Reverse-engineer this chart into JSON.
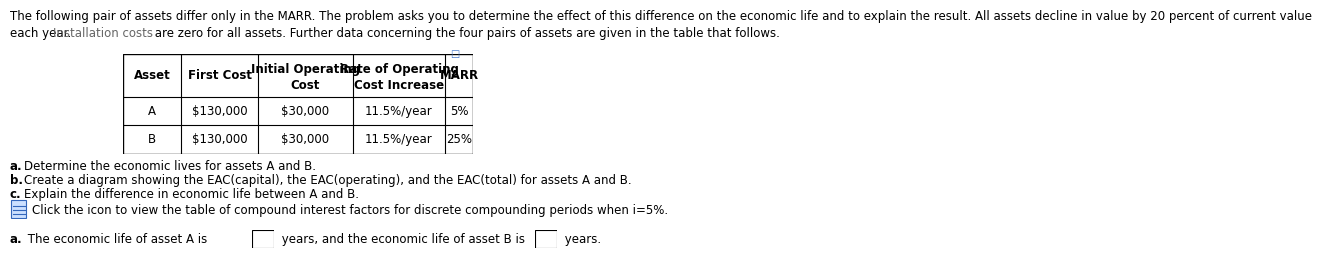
{
  "intro_line1": "The following pair of assets differ only in the MARR. The problem asks you to determine the effect of this difference on the economic life and to explain the result. All assets decline in value by 20 percent of current value",
  "intro_line2": "each year. Installation costs are zero for all assets. Further data concerning the four pairs of assets are given in the table that follows.",
  "intro_line2_plain": "each year. ",
  "intro_line2_styled": "Installation costs",
  "intro_line2_rest": " are zero for all assets. Further data concerning the four pairs of assets are given in the table that follows.",
  "col_headers_line1": [
    "Asset",
    "First Cost",
    "Initial Operating",
    "Rate of Operating",
    "MARR"
  ],
  "col_headers_line2": [
    "",
    "",
    "Cost",
    "Cost Increase",
    ""
  ],
  "row_A": [
    "A",
    "$130,000",
    "$30,000",
    "11.5%/year",
    "5%"
  ],
  "row_B": [
    "B",
    "$130,000",
    "$30,000",
    "11.5%/year",
    "25%"
  ],
  "qa_bold": "a.",
  "qa_rest": " Determine the economic lives for assets A and B.",
  "qb_bold": "b.",
  "qb_rest": " Create a diagram showing the EAC(capital), the EAC(operating), and the EAC(total) for assets A and B.",
  "qc_bold": "c.",
  "qc_rest": " Explain the difference in economic life between A and B.",
  "click_text": "Click the icon to view the table of compound interest factors for discrete compounding periods when i=5%.",
  "ans_bold": "a.",
  "ans_part1": " The economic life of asset A is",
  "ans_part2": " years, and the economic life of asset B is",
  "ans_part3": " years.",
  "bg": "#ffffff",
  "tc": "#000000",
  "fs": 8.5,
  "fs_bold": 8.5
}
